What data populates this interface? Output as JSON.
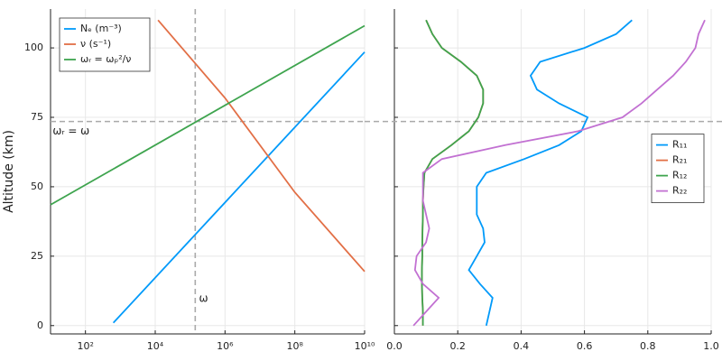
{
  "chart_data": [
    {
      "type": "line",
      "ylabel": "Altitude (km)",
      "xscale": "log",
      "xlim": [
        10,
        10000000000
      ],
      "ylim": [
        -3,
        114
      ],
      "xticks": [
        {
          "value": 100,
          "label": "10²"
        },
        {
          "value": 10000,
          "label": "10⁴"
        },
        {
          "value": 1000000,
          "label": "10⁶"
        },
        {
          "value": 100000000,
          "label": "10⁸"
        },
        {
          "value": 10000000000,
          "label": "10¹⁰"
        }
      ],
      "yticks": [
        0,
        25,
        50,
        75,
        100
      ],
      "grid": true,
      "legend": "top-left",
      "hlines": [
        73.5
      ],
      "vlines": [
        140000
      ],
      "annotations": [
        {
          "text": "ωᵣ = ω",
          "x": 11.5,
          "y": 70
        },
        {
          "text": "ω",
          "x": 180000,
          "y": 9.7
        }
      ],
      "series": [
        {
          "name": "Nₑ (m⁻³)",
          "color": "#009afa",
          "x": [
            630,
            10000000000
          ],
          "y": [
            1,
            98.5
          ]
        },
        {
          "name": "ν (s⁻¹)",
          "color": "#e26f46",
          "x": [
            12000,
            1000000,
            100000000,
            10000000000
          ],
          "y": [
            110,
            82,
            48,
            19.5
          ]
        },
        {
          "name": "ωᵣ = ωₚ²/ν",
          "color": "#3ea44e",
          "x": [
            10,
            10000000000
          ],
          "y": [
            43.5,
            108
          ]
        }
      ]
    },
    {
      "type": "line",
      "xscale": "linear",
      "xlim": [
        0,
        1
      ],
      "ylim": [
        -3,
        114
      ],
      "xticks": [
        {
          "value": 0,
          "label": "0.0"
        },
        0.2,
        0.4,
        0.6,
        0.8,
        {
          "value": 1,
          "label": "1.0"
        }
      ],
      "yticks": [
        0,
        25,
        50,
        75,
        100
      ],
      "grid": true,
      "legend": "right",
      "hlines": [
        73.5
      ],
      "y": [
        0,
        5,
        10,
        15,
        20,
        25,
        30,
        35,
        40,
        45,
        50,
        55,
        60,
        65,
        70,
        75,
        80,
        85,
        90,
        95,
        100,
        105,
        110
      ],
      "series": [
        {
          "name": "R₁₁",
          "color": "#009afa",
          "x": [
            0.29,
            0.3,
            0.31,
            0.27,
            0.235,
            0.26,
            0.285,
            0.28,
            0.26,
            0.26,
            0.26,
            0.29,
            0.41,
            0.52,
            0.59,
            0.61,
            0.52,
            0.45,
            0.43,
            0.46,
            0.6,
            0.7,
            0.75
          ]
        },
        {
          "name": "R₂₁",
          "color": "#e26f46",
          "x": [
            0.09,
            0.09,
            0.088,
            0.087,
            0.087,
            0.088,
            0.088,
            0.089,
            0.09,
            0.09,
            0.092,
            0.095,
            0.12,
            0.18,
            0.235,
            0.265,
            0.28,
            0.28,
            0.26,
            0.21,
            0.15,
            0.12,
            0.1
          ]
        },
        {
          "name": "R₁₂",
          "color": "#3ea44e",
          "x": [
            0.09,
            0.09,
            0.088,
            0.087,
            0.087,
            0.088,
            0.088,
            0.089,
            0.09,
            0.09,
            0.092,
            0.095,
            0.12,
            0.18,
            0.235,
            0.265,
            0.28,
            0.28,
            0.26,
            0.21,
            0.15,
            0.12,
            0.1
          ]
        },
        {
          "name": "R₂₂",
          "color": "#c271d2",
          "x": [
            0.06,
            0.1,
            0.14,
            0.09,
            0.065,
            0.07,
            0.1,
            0.11,
            0.1,
            0.09,
            0.09,
            0.09,
            0.15,
            0.35,
            0.58,
            0.72,
            0.78,
            0.83,
            0.88,
            0.92,
            0.95,
            0.96,
            0.98
          ]
        }
      ]
    }
  ]
}
